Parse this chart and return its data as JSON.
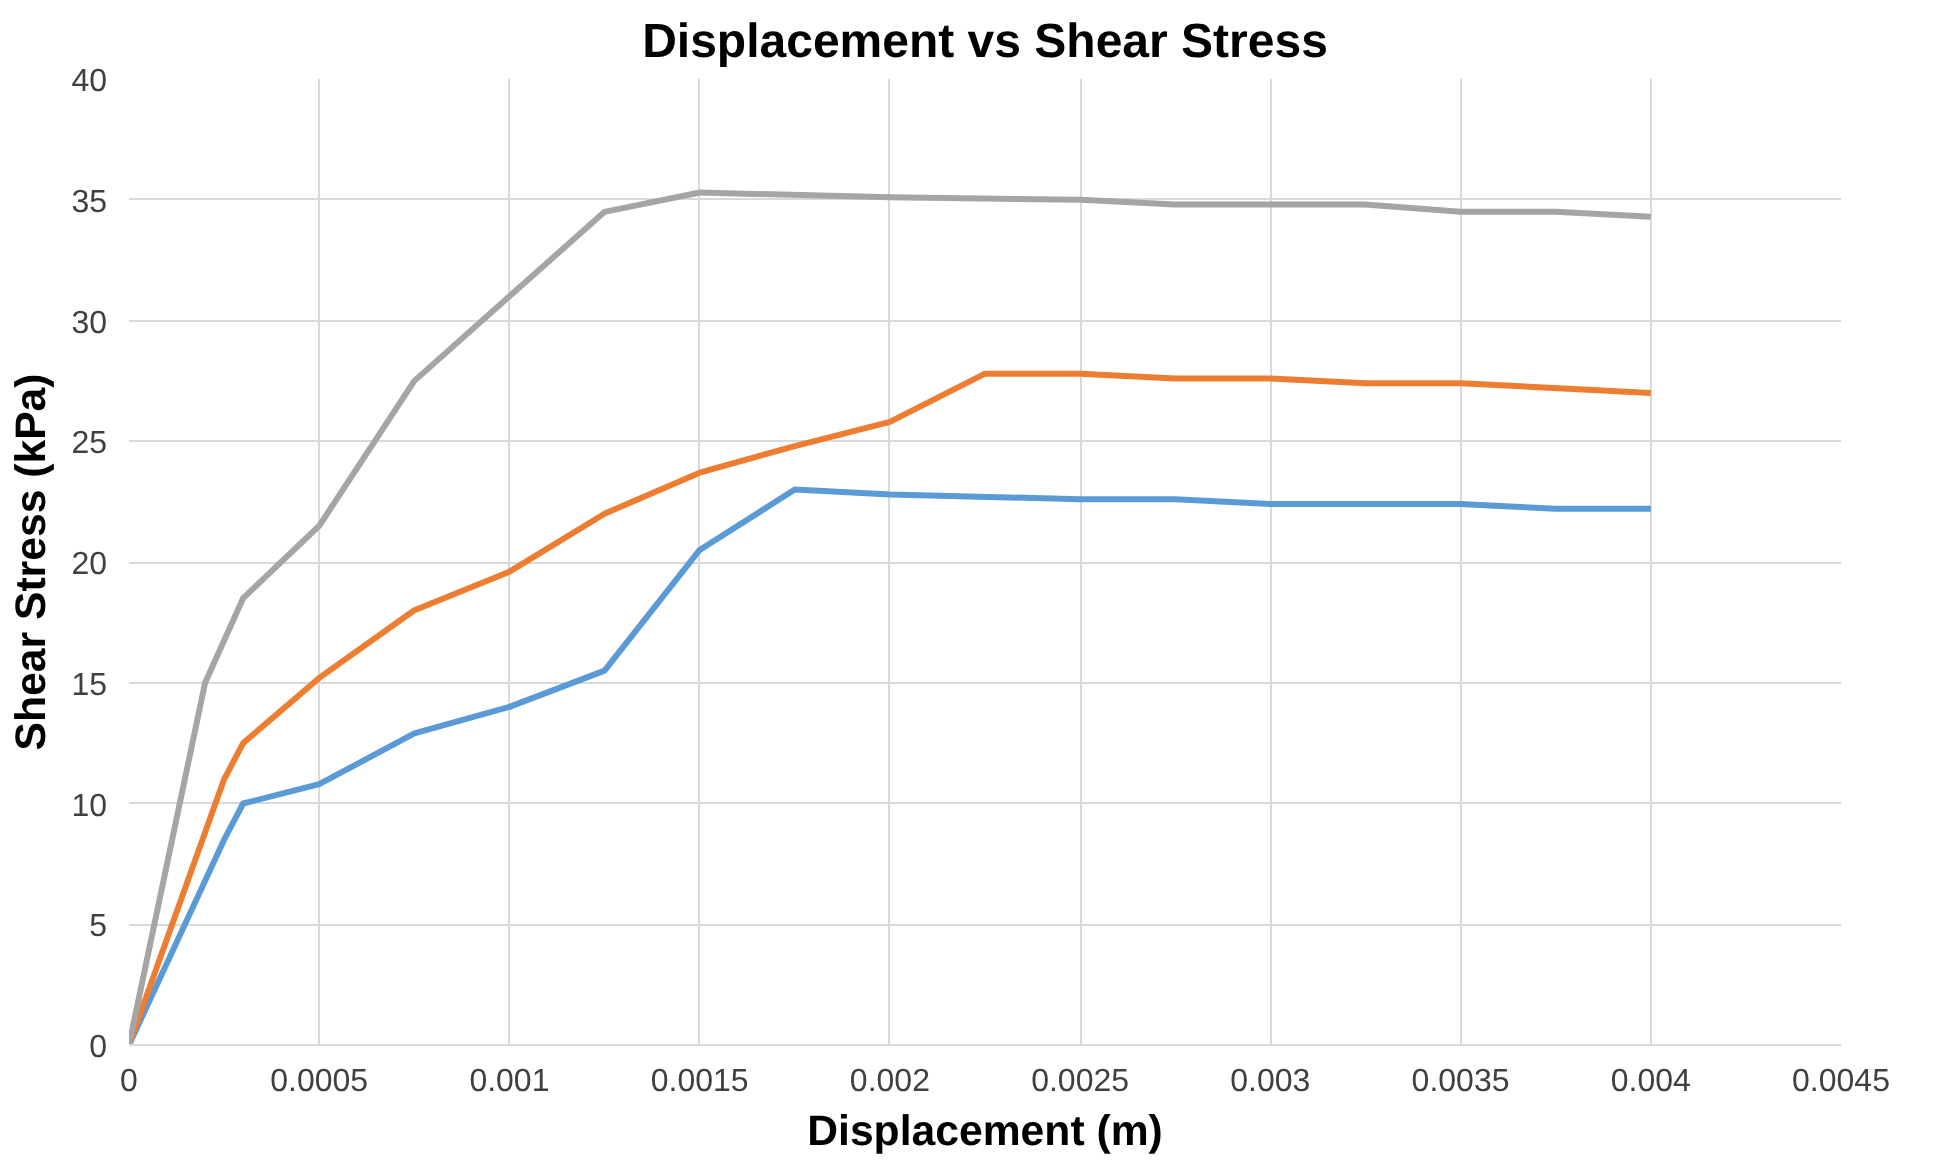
{
  "chart_data": {
    "type": "line",
    "title": "Displacement vs Shear Stress",
    "xlabel": "Displacement (m)",
    "ylabel": "Shear Stress (kPa)",
    "xlim": [
      0,
      0.0045
    ],
    "xticks": [
      0,
      0.0005,
      0.001,
      0.0015,
      0.002,
      0.0025,
      0.003,
      0.0035,
      0.004,
      0.0045
    ],
    "ylim": [
      0,
      40
    ],
    "yticks": [
      0,
      5,
      10,
      15,
      20,
      25,
      30,
      35,
      40
    ],
    "grid": true,
    "marker": "none",
    "line_style": "solid",
    "series": [
      {
        "color": "#5b9bd5",
        "x": [
          0,
          0.00025,
          0.0003,
          0.0005,
          0.00075,
          0.001,
          0.00125,
          0.0015,
          0.00175,
          0.002,
          0.0025,
          0.00275,
          0.003,
          0.0035,
          0.00375,
          0.004
        ],
        "values": [
          0,
          8.5,
          10,
          10.8,
          12.9,
          14,
          15.5,
          20.5,
          23,
          22.8,
          22.6,
          22.6,
          22.4,
          22.4,
          22.2,
          22.2
        ]
      },
      {
        "color": "#ed7d31",
        "x": [
          0,
          0.00025,
          0.0003,
          0.0005,
          0.00075,
          0.001,
          0.00125,
          0.0015,
          0.00175,
          0.002,
          0.00225,
          0.0025,
          0.00275,
          0.003,
          0.00325,
          0.0035,
          0.004
        ],
        "values": [
          0,
          11,
          12.5,
          15.2,
          18,
          19.6,
          22,
          23.7,
          24.8,
          25.8,
          27.8,
          27.8,
          27.6,
          27.6,
          27.4,
          27.4,
          27
        ]
      },
      {
        "color": "#a5a5a5",
        "x": [
          0,
          0.0002,
          0.0003,
          0.0005,
          0.00075,
          0.001,
          0.00125,
          0.0015,
          0.002,
          0.0025,
          0.00275,
          0.003,
          0.00325,
          0.0035,
          0.00375,
          0.004
        ],
        "values": [
          0,
          15,
          18.5,
          21.5,
          27.5,
          31,
          34.5,
          35.3,
          35.1,
          35,
          34.8,
          34.8,
          34.8,
          34.5,
          34.5,
          34.3
        ]
      }
    ]
  }
}
